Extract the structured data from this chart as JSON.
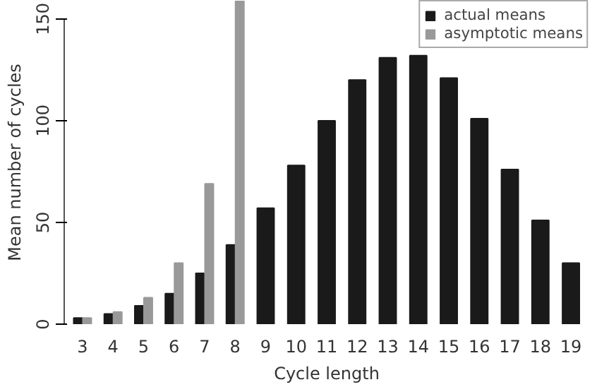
{
  "chart_data": {
    "type": "bar",
    "xlabel": "Cycle length",
    "ylabel": "Mean number of cycles",
    "categories": [
      "3",
      "4",
      "5",
      "6",
      "7",
      "8",
      "9",
      "10",
      "11",
      "12",
      "13",
      "14",
      "15",
      "16",
      "17",
      "18",
      "19"
    ],
    "series": [
      {
        "name": "actual means",
        "color": "#1a1a1a",
        "values": [
          3,
          5,
          9,
          15,
          25,
          39,
          57,
          78,
          100,
          120,
          131,
          132,
          121,
          101,
          76,
          51,
          30
        ]
      },
      {
        "name": "asymptotic means",
        "color": "#999999",
        "values": [
          3,
          6,
          13,
          30,
          69,
          159,
          null,
          null,
          null,
          null,
          null,
          null,
          null,
          null,
          null,
          null,
          null
        ]
      }
    ],
    "ylim": [
      0,
      159
    ],
    "yticks": [
      0,
      50,
      100,
      150
    ],
    "grid": false,
    "legend": "top right"
  }
}
